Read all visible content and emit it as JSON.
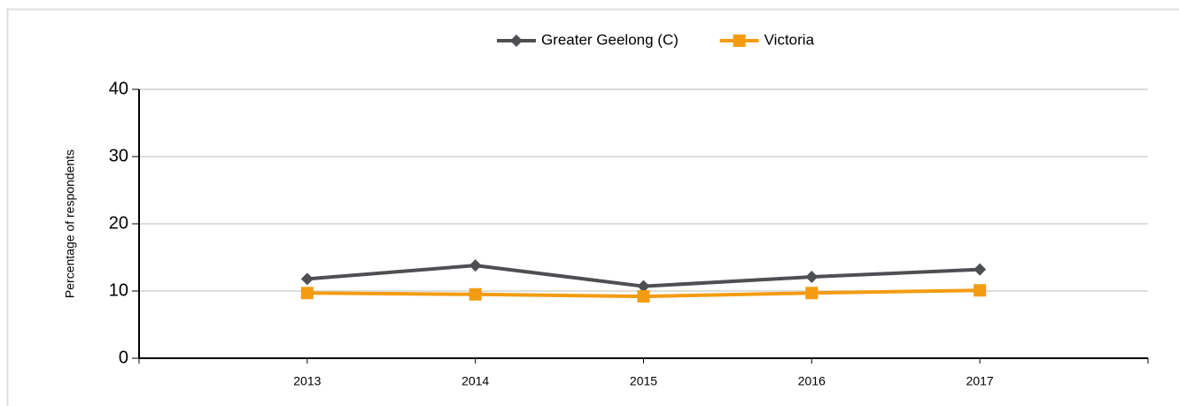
{
  "chart_data": {
    "type": "line",
    "y_label": "Percentage of respondents",
    "categories": [
      "2013",
      "2014",
      "2015",
      "2016",
      "2017"
    ],
    "series": [
      {
        "name": "Greater Geelong (C)",
        "color": "#4d4f53",
        "marker": "diamond",
        "values": [
          11.8,
          13.8,
          10.7,
          12.1,
          13.2
        ]
      },
      {
        "name": "Victoria",
        "color": "#f39c12",
        "marker": "square",
        "values": [
          9.7,
          9.5,
          9.2,
          9.7,
          10.1
        ]
      }
    ],
    "ylim": [
      0,
      40
    ],
    "yticks": [
      0,
      10,
      20,
      30,
      40
    ],
    "grid": true,
    "legend": "top"
  }
}
